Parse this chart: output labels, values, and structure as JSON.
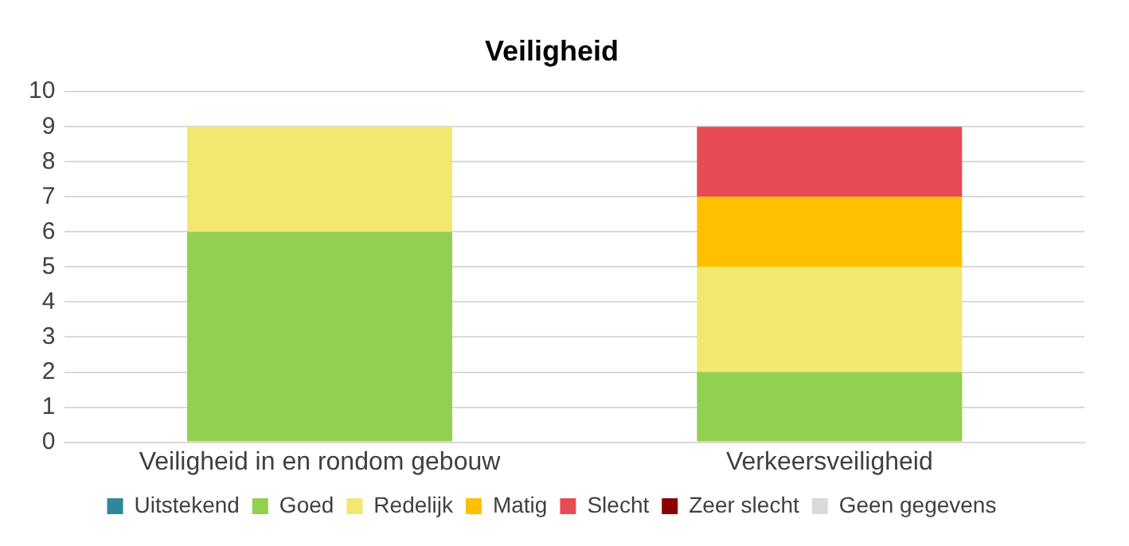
{
  "chart_data": {
    "type": "bar",
    "title": "Veiligheid",
    "categories": [
      "Veiligheid in en rondom gebouw",
      "Verkeersveiligheid"
    ],
    "stacked": true,
    "series": [
      {
        "name": "Uitstekend",
        "color": "#31859c",
        "values": [
          0,
          0
        ]
      },
      {
        "name": "Goed",
        "color": "#92d050",
        "values": [
          6,
          2
        ]
      },
      {
        "name": "Redelijk",
        "color": "#f3e86f",
        "values": [
          3,
          3
        ]
      },
      {
        "name": "Matig",
        "color": "#ffc000",
        "values": [
          0,
          2
        ]
      },
      {
        "name": "Slecht",
        "color": "#e84c53",
        "values": [
          0,
          2
        ]
      },
      {
        "name": "Zeer slecht",
        "color": "#8b0000",
        "values": [
          0,
          0
        ]
      },
      {
        "name": "Geen gegevens",
        "color": "#d9d9d9",
        "values": [
          0,
          0
        ]
      }
    ],
    "ylim": [
      0,
      10
    ],
    "yticks": [
      0,
      1,
      2,
      3,
      4,
      5,
      6,
      7,
      8,
      9,
      10
    ],
    "grid": "y",
    "legend": "bottom"
  }
}
